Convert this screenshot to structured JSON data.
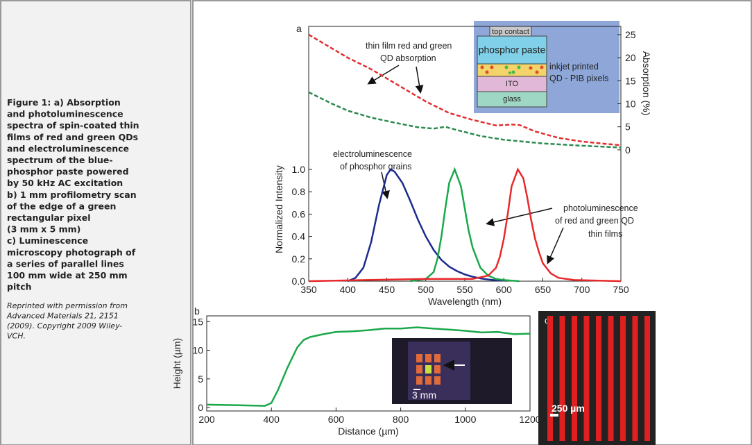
{
  "caption": {
    "lines": [
      "Figure 1: a) Absorption",
      "and photoluminescence",
      "spectra of spin-coated thin",
      "films of red and green QDs",
      "and electroluminescence",
      "spectrum of the blue-",
      "phosphor paste powered",
      "by 50 kHz AC excitation",
      "b) 1 mm profilometry scan",
      "of the edge of a green",
      "rectangular pixel",
      "(3 mm x 5 mm)",
      "c) Luminescence",
      "microscopy photograph of",
      "a series of parallel lines",
      "100 mm wide at 250 mm",
      "pitch"
    ],
    "credit": [
      "Reprinted with permission from",
      "Advanced Materials 21, 2151",
      "(2009). Copyright 2009 Wiley-",
      "VCH."
    ]
  },
  "chart_data": [
    {
      "type": "line",
      "panel_label": "a",
      "x_label": "Wavelength (nm)",
      "y_label": "Normalized Intensity",
      "y2_label": "Absorption (%)",
      "xlim": [
        350,
        750
      ],
      "xticks": [
        350,
        400,
        450,
        500,
        550,
        600,
        650,
        700,
        750
      ],
      "ylim": [
        0,
        2.28
      ],
      "yticks": [
        {
          "value": 0,
          "label": "0.0"
        },
        0.2,
        0.4,
        0.6,
        0.8,
        {
          "value": 1,
          "label": "1.0"
        }
      ],
      "y2lim": [
        -28.5,
        26.8
      ],
      "y2ticks": [
        0,
        5,
        10,
        15,
        20,
        25
      ],
      "series": [
        {
          "color": "#1c2a8c",
          "x": [
            400,
            410,
            420,
            430,
            440,
            450,
            455,
            460,
            470,
            480,
            490,
            500,
            510,
            520,
            530,
            540,
            550,
            560,
            570,
            580,
            590,
            600
          ],
          "values": [
            0,
            0.03,
            0.12,
            0.35,
            0.68,
            0.95,
            1.0,
            0.98,
            0.88,
            0.72,
            0.55,
            0.4,
            0.28,
            0.19,
            0.13,
            0.09,
            0.06,
            0.04,
            0.025,
            0.015,
            0.008,
            0.005
          ]
        },
        {
          "color": "#1aa84a",
          "x": [
            480,
            500,
            510,
            515,
            520,
            525,
            530,
            537,
            545,
            550,
            555,
            560,
            570,
            580,
            590,
            600,
            620
          ],
          "values": [
            0,
            0.02,
            0.08,
            0.2,
            0.4,
            0.65,
            0.88,
            1.0,
            0.85,
            0.65,
            0.45,
            0.3,
            0.12,
            0.05,
            0.02,
            0.01,
            0
          ]
        },
        {
          "color": "#e8282a",
          "x": [
            350,
            500,
            560,
            580,
            590,
            595,
            600,
            605,
            610,
            618,
            625,
            630,
            635,
            640,
            645,
            650,
            660,
            670,
            690,
            750
          ],
          "values": [
            0,
            0.02,
            0.02,
            0.05,
            0.12,
            0.22,
            0.38,
            0.6,
            0.85,
            1.0,
            0.92,
            0.75,
            0.55,
            0.38,
            0.26,
            0.16,
            0.07,
            0.03,
            0.01,
            0
          ]
        },
        {
          "color": "#e03030",
          "axis": "y2",
          "dashed": true,
          "x": [
            350,
            380,
            400,
            430,
            460,
            480,
            500,
            530,
            560,
            590,
            610,
            620,
            640,
            670,
            700,
            730,
            750
          ],
          "values": [
            25,
            22,
            20,
            17.5,
            14.5,
            12.5,
            10.5,
            8,
            6.5,
            5.3,
            5.5,
            5.4,
            4,
            2.6,
            1.8,
            1.3,
            1
          ]
        },
        {
          "color": "#2b8a4f",
          "axis": "y2",
          "dashed": true,
          "x": [
            350,
            380,
            400,
            430,
            460,
            490,
            510,
            525,
            540,
            570,
            600,
            650,
            700,
            750
          ],
          "values": [
            12.5,
            10,
            8.5,
            7,
            5.9,
            4.9,
            4.6,
            5,
            4.3,
            3,
            2.2,
            1.4,
            0.9,
            0.5
          ]
        }
      ],
      "annotations": [
        [
          "thin film red and green",
          "QD absorption"
        ],
        [
          "electroluminescence",
          "of phosphor grains"
        ],
        [
          "photoluminescence",
          "of red and green QD",
          "thin films"
        ]
      ],
      "inset": {
        "layers": [
          "top contact",
          "phosphor paste",
          "ITO",
          "glass"
        ],
        "label": [
          "inkjet printed",
          "QD - PIB pixels"
        ]
      }
    },
    {
      "type": "line",
      "panel_label": "b",
      "x_label": "Distance (µm)",
      "y_label": "Height (µm)",
      "xlim": [
        200,
        1200
      ],
      "xticks": [
        200,
        400,
        600,
        800,
        1000,
        1200
      ],
      "ylim": [
        -0.6,
        16
      ],
      "yticks": [
        0,
        5,
        10,
        15
      ],
      "series": [
        {
          "color": "#1aa84a",
          "x": [
            200,
            300,
            380,
            400,
            420,
            450,
            480,
            500,
            520,
            560,
            600,
            650,
            700,
            750,
            800,
            850,
            900,
            950,
            1000,
            1050,
            1100,
            1150,
            1200
          ],
          "values": [
            0.5,
            0.4,
            0.3,
            0.8,
            3,
            7,
            10.5,
            11.8,
            12.3,
            12.8,
            13.2,
            13.3,
            13.5,
            13.8,
            13.8,
            14,
            13.8,
            13.6,
            13.4,
            13.1,
            13.2,
            12.8,
            12.9
          ]
        }
      ],
      "inset_scale": "3 mm"
    }
  ],
  "photo_c": {
    "panel_label": "c",
    "scale": "250 µm"
  }
}
